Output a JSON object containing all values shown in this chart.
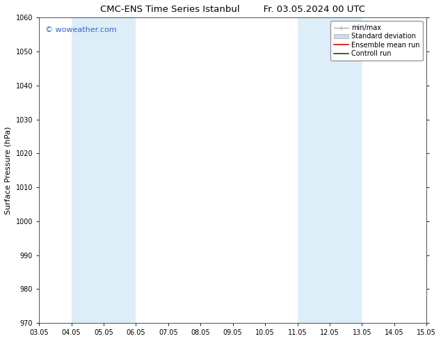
{
  "title_left": "CMC-ENS Time Series Istanbul",
  "title_right": "Fr. 03.05.2024 00 UTC",
  "ylabel": "Surface Pressure (hPa)",
  "ylim": [
    970,
    1060
  ],
  "yticks": [
    970,
    980,
    990,
    1000,
    1010,
    1020,
    1030,
    1040,
    1050,
    1060
  ],
  "xtick_labels": [
    "03.05",
    "04.05",
    "05.05",
    "06.05",
    "07.05",
    "08.05",
    "09.05",
    "10.05",
    "11.05",
    "12.05",
    "13.05",
    "14.05",
    "15.05"
  ],
  "xtick_positions": [
    0,
    1,
    2,
    3,
    4,
    5,
    6,
    7,
    8,
    9,
    10,
    11,
    12
  ],
  "shaded_regions": [
    {
      "x_start": 1,
      "x_end": 3,
      "color": "#ddeef8"
    },
    {
      "x_start": 8,
      "x_end": 10,
      "color": "#ddeef8"
    }
  ],
  "watermark_text": "© woweather.com",
  "watermark_color": "#3366cc",
  "legend_items": [
    {
      "label": "min/max",
      "color": "#aaaaaa",
      "lw": 1.0,
      "style": "line_with_caps"
    },
    {
      "label": "Standard deviation",
      "color": "#ccddef",
      "lw": 8,
      "style": "band"
    },
    {
      "label": "Ensemble mean run",
      "color": "#dd0000",
      "lw": 1.2,
      "style": "line"
    },
    {
      "label": "Controll run",
      "color": "#005500",
      "lw": 1.2,
      "style": "line"
    }
  ],
  "bg_color": "#ffffff",
  "plot_bg_color": "#ffffff",
  "grid_color": "#cccccc",
  "title_fontsize": 9.5,
  "tick_fontsize": 7,
  "ylabel_fontsize": 8,
  "watermark_fontsize": 8,
  "legend_fontsize": 7
}
